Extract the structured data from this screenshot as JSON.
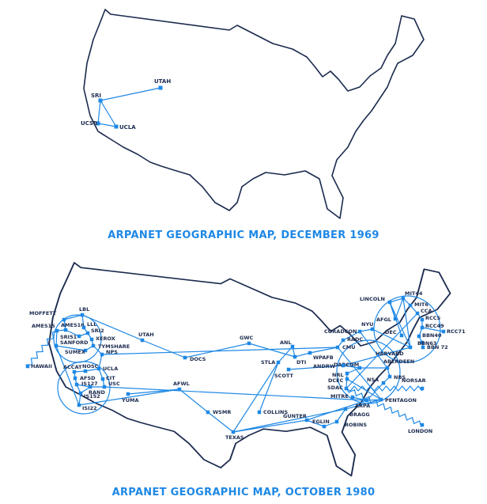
{
  "maps": [
    {
      "title": "ARPANET GEOGRAPHIC MAP, DECEMBER 1969",
      "nodes": [
        "SRI",
        "UTAH",
        "UCSB",
        "UCLA"
      ]
    },
    {
      "title": "ARPANET GEOGRAPHIC MAP, OCTOBER 1980",
      "nodes": [
        "MOFFETT",
        "LBL",
        "AMES15",
        "AMES16",
        "LLL",
        "SRI2",
        "SRI51",
        "SANFORD",
        "XEROX",
        "TYMSHARE",
        "SUMEX",
        "NPS",
        "HAWAII",
        "ACCAT",
        "NOSC",
        "UCLA",
        "AFSD",
        "CIT",
        "IS127",
        "USC",
        "RAND",
        "IS152",
        "ISI22",
        "YUMA",
        "AFWL",
        "WSMR",
        "UTAH",
        "DOCS",
        "GWC",
        "STLA",
        "SCOTT",
        "COLLINS",
        "TEXAS",
        "ANL",
        "DTI",
        "WPAFB",
        "CMU",
        "RADC",
        "CORADCON",
        "NYU",
        "LINCOLN",
        "MIT44",
        "MIT6",
        "AFGL",
        "CCA",
        "RCCS",
        "RCC49",
        "RCC71",
        "DEC",
        "BBN40",
        "BBN63",
        "BBN 72",
        "HARVARD",
        "DARCOM",
        "ABERDEEN",
        "ANDRW",
        "NRL",
        "DCEC",
        "NBS",
        "NSA",
        "NORSAR",
        "SDAC",
        "MITRE",
        "ARPA",
        "PENTAGON",
        "BRAGG",
        "GUNTER",
        "EGLIN",
        "ROBINS",
        "LONDON"
      ]
    }
  ],
  "colors": {
    "accent": "#1e88e5",
    "outline": "#1b2a4e"
  }
}
